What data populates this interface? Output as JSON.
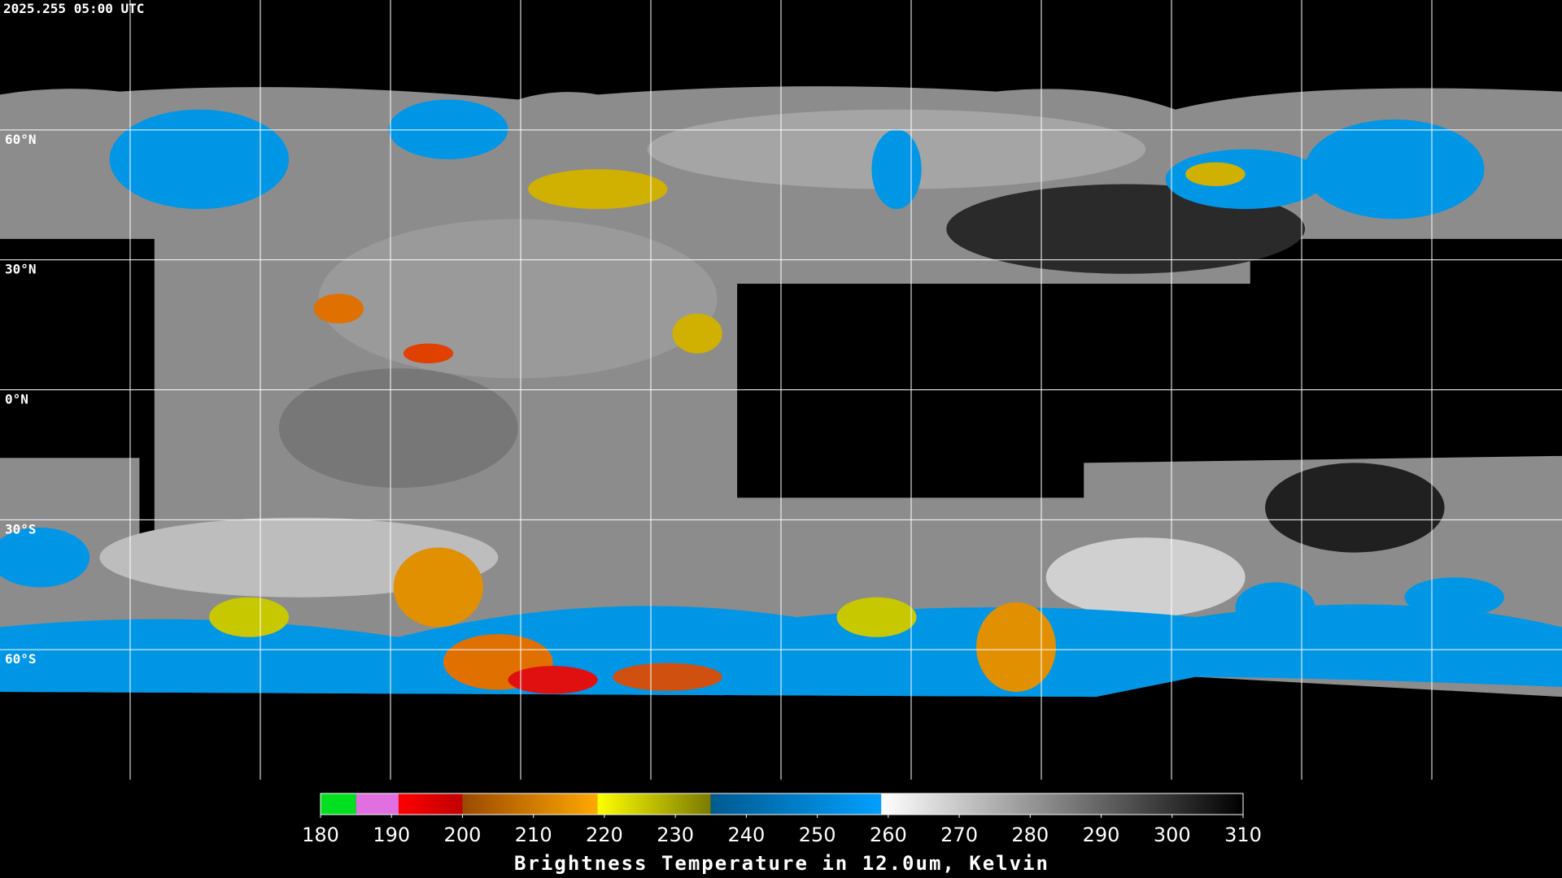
{
  "timestamp": "2025.255 05:00 UTC",
  "map": {
    "lat_lines": [
      {
        "value": 60,
        "label": "60°N"
      },
      {
        "value": 30,
        "label": "30°N"
      },
      {
        "value": 0,
        "label": "0°N"
      },
      {
        "value": -30,
        "label": "30°S"
      },
      {
        "value": -60,
        "label": "60°S"
      }
    ]
  },
  "colorbar": {
    "title": "Brightness Temperature in 12.0um, Kelvin",
    "lim": [
      180,
      310
    ],
    "ticks": [
      180,
      190,
      200,
      210,
      220,
      230,
      240,
      250,
      260,
      270,
      280,
      290,
      300,
      310
    ],
    "segments": [
      {
        "from": 180,
        "to": 185,
        "colors": [
          "#00e020",
          "#00e020"
        ]
      },
      {
        "from": 185,
        "to": 191,
        "colors": [
          "#e070e0",
          "#e070e0"
        ]
      },
      {
        "from": 191,
        "to": 200,
        "colors": [
          "#ff0000",
          "#c00000"
        ]
      },
      {
        "from": 200,
        "to": 219,
        "colors": [
          "#9a4a00",
          "#ffa800"
        ]
      },
      {
        "from": 219,
        "to": 235,
        "colors": [
          "#ffff00",
          "#7a7a00"
        ]
      },
      {
        "from": 235,
        "to": 259,
        "colors": [
          "#005a90",
          "#00a0ff"
        ]
      },
      {
        "from": 259,
        "to": 310,
        "colors": [
          "#ffffff",
          "#000000"
        ]
      }
    ]
  }
}
